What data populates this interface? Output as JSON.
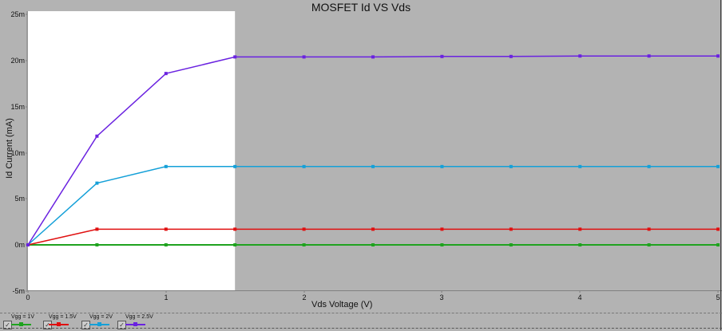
{
  "chart_data": {
    "type": "line",
    "title": "MOSFET Id VS Vds",
    "xlabel": "Vds Voltage (V)",
    "ylabel": "Id Current (mA)",
    "x": [
      0,
      0.5,
      1,
      1.5,
      2,
      2.5,
      3,
      3.5,
      4,
      4.5,
      5
    ],
    "xlim": [
      0,
      5
    ],
    "ylim": [
      -5,
      25
    ],
    "x_ticks": [
      "0",
      "1",
      "2",
      "3",
      "4",
      "5"
    ],
    "y_ticks": [
      "-5m",
      "0m",
      "5m",
      "10m",
      "15m",
      "20m",
      "25m"
    ],
    "grid": false,
    "legend_position": "bottom",
    "series": [
      {
        "name": "Vgg = 1V",
        "color": "#1fa31f",
        "values": [
          0,
          0,
          0,
          0,
          0,
          0,
          0,
          0,
          0,
          0,
          0
        ]
      },
      {
        "name": "Vgg = 1.5V",
        "color": "#e01010",
        "values": [
          0,
          1.7,
          1.7,
          1.7,
          1.7,
          1.7,
          1.7,
          1.7,
          1.7,
          1.7,
          1.7
        ]
      },
      {
        "name": "Vgg = 2V",
        "color": "#14a0d8",
        "values": [
          0,
          6.7,
          8.5,
          8.5,
          8.5,
          8.5,
          8.5,
          8.5,
          8.5,
          8.5,
          8.5
        ]
      },
      {
        "name": "Vgg = 2.5V",
        "color": "#6a22e0",
        "values": [
          0,
          11.8,
          18.6,
          20.4,
          20.4,
          20.4,
          20.45,
          20.45,
          20.5,
          20.5,
          20.5
        ]
      }
    ],
    "highlight_region": {
      "x_from": 0,
      "x_to": 1.5,
      "color": "#ffffff"
    }
  },
  "legend": {
    "items": [
      {
        "label": "Vgg = 1V",
        "checked": true,
        "color": "#1fa31f"
      },
      {
        "label": "Vgg = 1.5V",
        "checked": true,
        "color": "#e01010"
      },
      {
        "label": "Vgg = 2V",
        "checked": true,
        "color": "#14a0d8"
      },
      {
        "label": "Vgg = 2.5V",
        "checked": true,
        "color": "#6a22e0"
      }
    ]
  }
}
